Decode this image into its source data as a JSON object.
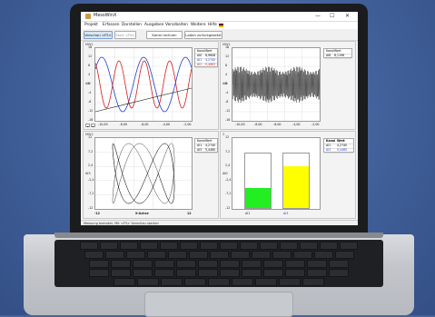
{
  "window": {
    "title": "MessWinX",
    "controls": {
      "minimize": "—",
      "maximize": "☐",
      "close": "✕"
    }
  },
  "menu": [
    "Projekt",
    "Erfassen",
    "Darstellen",
    "Ausgeben",
    "Verarbeiten",
    "Weitere",
    "Hilfe"
  ],
  "toolbar": {
    "buttons": [
      {
        "label": "Vorschau <F5>",
        "state": "active"
      },
      {
        "label": "Start <F6>",
        "state": "disabled"
      },
      {
        "label": "Kanal rechnen",
        "state": "normal"
      },
      {
        "label": "Laden zurückgesetzt",
        "state": "normal"
      }
    ]
  },
  "panels": {
    "tl": {
      "label": "MW1",
      "y_axis_label": "AI0",
      "y_ticks": [
        "16",
        "12",
        "8",
        "4",
        "0",
        "-4",
        "-8",
        "-12",
        "-16"
      ],
      "x_ticks": [
        "-10,00",
        "-8,00",
        "-6,00",
        "-4,00",
        "-2,00"
      ],
      "legend_header": [
        "Kanal",
        "Wert"
      ],
      "legend": [
        {
          "channel": "AI0",
          "value": "8,9608",
          "color": "#111111"
        },
        {
          "channel": "AI1",
          "value": "4,2740",
          "color": "#1f3fd0"
        },
        {
          "channel": "AI2",
          "value": "9,4663",
          "color": "#d21e1e"
        }
      ]
    },
    "tr": {
      "label": "MW1",
      "y_axis_label": "AI6",
      "y_ticks": [
        "16",
        "12",
        "8",
        "4",
        "0",
        "-4",
        "-8",
        "-12",
        "-16"
      ],
      "x_ticks": [
        "-10,00",
        "-8,00",
        "-6,00",
        "-4,00",
        "-2,00"
      ],
      "legend_header": [
        "Kanal",
        "Wert"
      ],
      "legend": [
        {
          "channel": "AI6",
          "value": "8,1196",
          "color": "#111111"
        }
      ]
    },
    "bl": {
      "label": "MW2",
      "y_axis_label": "AI3",
      "y_ticks": [
        "12",
        "7,2",
        "2,4",
        "-2,4",
        "-7,2",
        "-12"
      ],
      "x_min": "-12",
      "x_max": "12",
      "x_axis_label": "X-Achse",
      "legend_header": [
        "Kanal",
        "Wert"
      ],
      "legend": [
        {
          "channel": "AI1",
          "value": "4,2740",
          "color": "#111111"
        },
        {
          "channel": "AI3",
          "value": "5,4460",
          "color": "#111111"
        }
      ]
    },
    "br": {
      "label": "3",
      "y_axis_label": "AI0",
      "y_ticks": [
        "12",
        "7,2",
        "2,4",
        "-2,4",
        "-7,2",
        "-12"
      ],
      "bar_labels": [
        "AI1",
        "AI3"
      ],
      "legend_header": [
        "Kanal",
        "Wert"
      ],
      "legend": [
        {
          "channel": "AI1",
          "value": "4,2740",
          "color": "#111111"
        },
        {
          "channel": "AI3",
          "value": "5,4460",
          "color": "#1f3fd0"
        }
      ],
      "bars": [
        {
          "channel": "AI1",
          "fill_color": "#22ee22",
          "level": 0.35
        },
        {
          "channel": "AI3",
          "fill_color": "#ffff00",
          "level": 0.75
        }
      ]
    }
  },
  "statusbar": "Messung beendet.  Mit <F5> Vorschau starten",
  "colors": {
    "desktop": "#46639a",
    "ai0_line": "#111111",
    "ai1_line": "#1f3fd0",
    "ai2_line": "#d21e1e",
    "bar_ai1": "#22ee22",
    "bar_ai3": "#ffff00"
  }
}
